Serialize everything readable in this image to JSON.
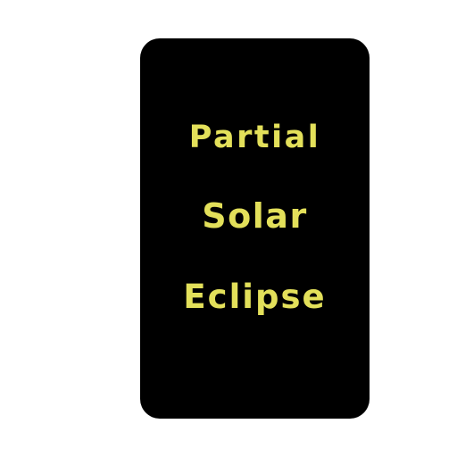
{
  "card": {
    "lines": [
      "Partial",
      "Solar",
      "Eclipse"
    ]
  },
  "colors": {
    "page_background": "#ffffff",
    "card_background": "#000000",
    "text": "#e3e05a"
  }
}
